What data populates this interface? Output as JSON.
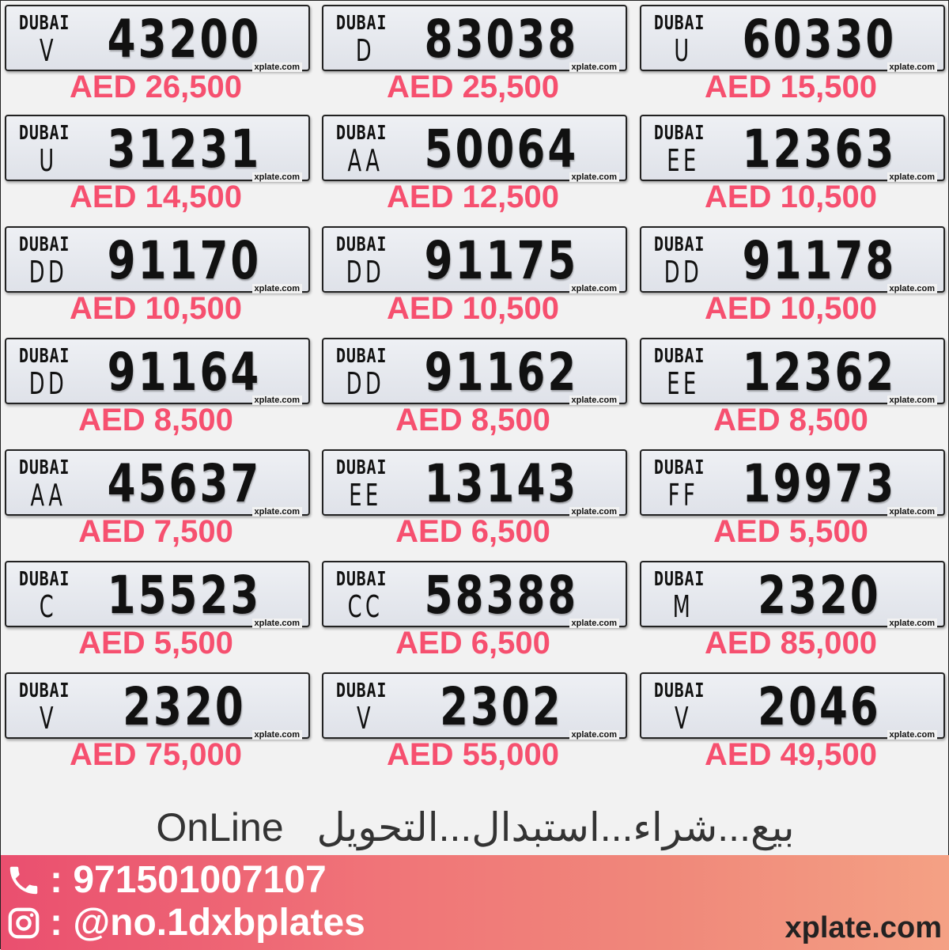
{
  "plates": [
    {
      "emirate": "DUBAI",
      "code": "V",
      "number": "43200",
      "price": "AED 26,500"
    },
    {
      "emirate": "DUBAI",
      "code": "D",
      "number": "83038",
      "price": "AED 25,500"
    },
    {
      "emirate": "DUBAI",
      "code": "U",
      "number": "60330",
      "price": "AED 15,500"
    },
    {
      "emirate": "DUBAI",
      "code": "U",
      "number": "31231",
      "price": "AED 14,500"
    },
    {
      "emirate": "DUBAI",
      "code": "AA",
      "number": "50064",
      "price": "AED 12,500"
    },
    {
      "emirate": "DUBAI",
      "code": "EE",
      "number": "12363",
      "price": "AED 10,500"
    },
    {
      "emirate": "DUBAI",
      "code": "DD",
      "number": "91170",
      "price": "AED 10,500"
    },
    {
      "emirate": "DUBAI",
      "code": "DD",
      "number": "91175",
      "price": "AED 10,500"
    },
    {
      "emirate": "DUBAI",
      "code": "DD",
      "number": "91178",
      "price": "AED 10,500"
    },
    {
      "emirate": "DUBAI",
      "code": "DD",
      "number": "91164",
      "price": "AED 8,500"
    },
    {
      "emirate": "DUBAI",
      "code": "DD",
      "number": "91162",
      "price": "AED 8,500"
    },
    {
      "emirate": "DUBAI",
      "code": "EE",
      "number": "12362",
      "price": "AED 8,500"
    },
    {
      "emirate": "DUBAI",
      "code": "AA",
      "number": "45637",
      "price": "AED 7,500"
    },
    {
      "emirate": "DUBAI",
      "code": "EE",
      "number": "13143",
      "price": "AED 6,500"
    },
    {
      "emirate": "DUBAI",
      "code": "FF",
      "number": "19973",
      "price": "AED 5,500"
    },
    {
      "emirate": "DUBAI",
      "code": "C",
      "number": "15523",
      "price": "AED 5,500"
    },
    {
      "emirate": "DUBAI",
      "code": "CC",
      "number": "58388",
      "price": "AED 6,500"
    },
    {
      "emirate": "DUBAI",
      "code": "M",
      "number": "2320",
      "price": "AED 85,000"
    },
    {
      "emirate": "DUBAI",
      "code": "V",
      "number": "2320",
      "price": "AED 75,000"
    },
    {
      "emirate": "DUBAI",
      "code": "V",
      "number": "2302",
      "price": "AED 55,000"
    },
    {
      "emirate": "DUBAI",
      "code": "V",
      "number": "2046",
      "price": "AED 49,500"
    }
  ],
  "plate_watermark": "xplate.com",
  "tagline": {
    "english": "OnLine",
    "arabic": "بيع...شراء...استبدال...التحويل"
  },
  "footer": {
    "phone": ": 971501007107",
    "instagram": ": @no.1dxbplates",
    "site": "xplate.com"
  },
  "colors": {
    "price": "#f6506f",
    "footer_start": "#ea4f6f",
    "footer_end": "#f4a184"
  },
  "icons": {
    "phone": "phone-icon",
    "instagram": "instagram-icon"
  }
}
